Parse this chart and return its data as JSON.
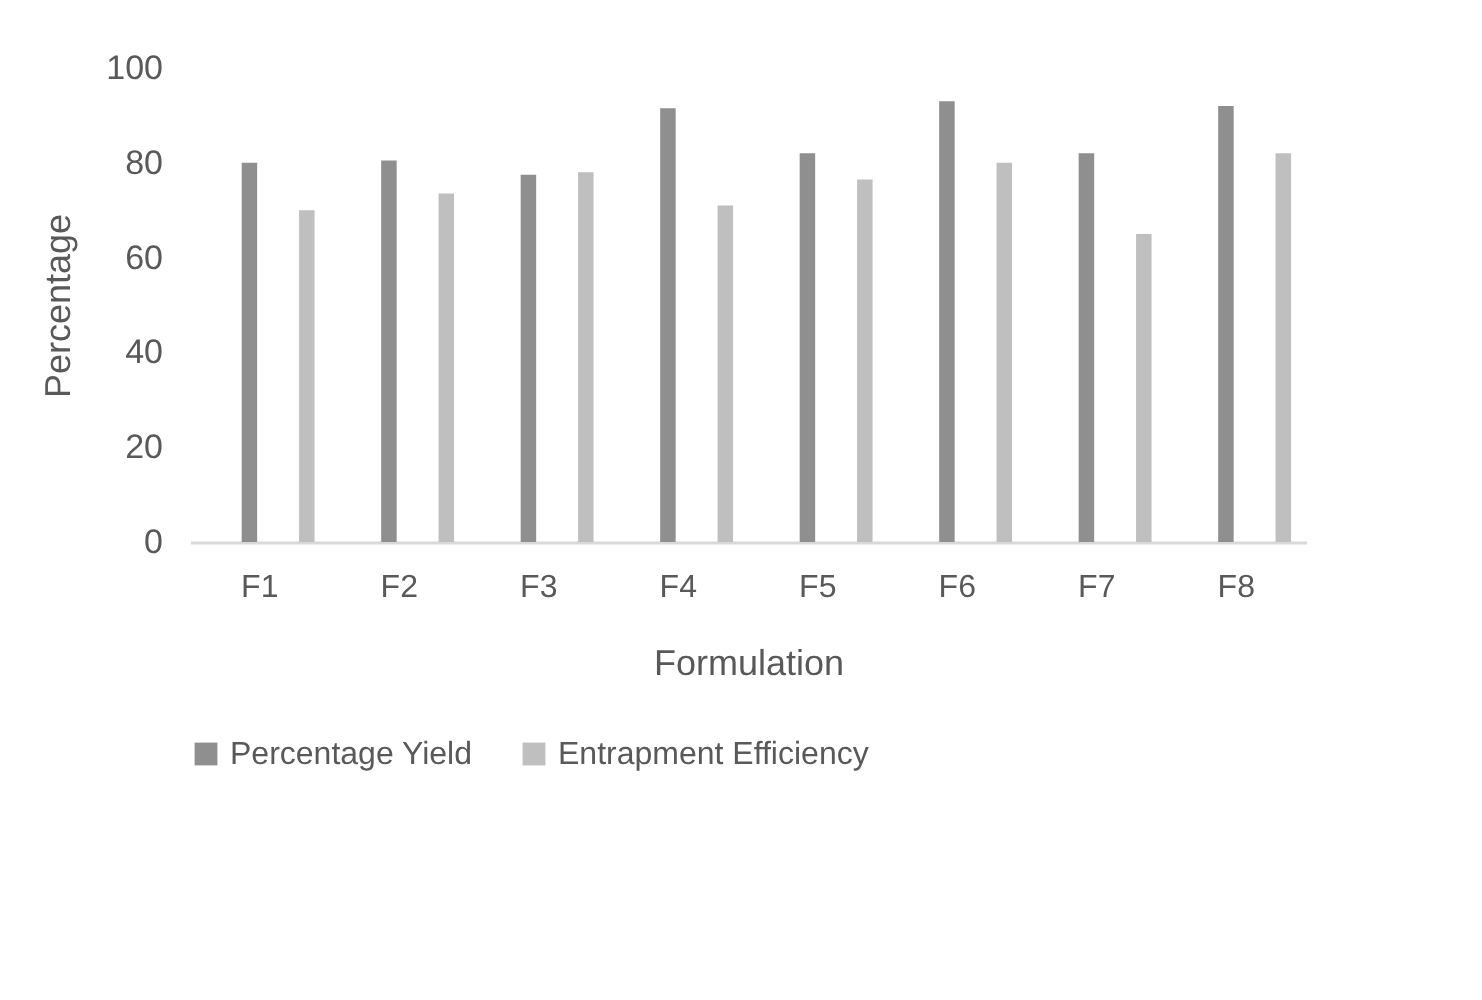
{
  "chart_data": {
    "type": "bar",
    "xlabel": "Formulation",
    "ylabel": "Percentage",
    "categories": [
      "F1",
      "F2",
      "F3",
      "F4",
      "F5",
      "F6",
      "F7",
      "F8"
    ],
    "series": [
      {
        "name": "Percentage Yield",
        "color": "#8f8f8f",
        "values": [
          80,
          80.5,
          77.5,
          91.5,
          82,
          93,
          82,
          92
        ]
      },
      {
        "name": "Entrapment Efficiency",
        "color": "#bfbfbf",
        "values": [
          70,
          73.5,
          78,
          71,
          76.5,
          80,
          65,
          82
        ]
      }
    ],
    "ylim": [
      0,
      100
    ],
    "yticks": [
      0,
      20,
      40,
      60,
      80,
      100
    ],
    "grid": false,
    "legend": "bottom"
  }
}
